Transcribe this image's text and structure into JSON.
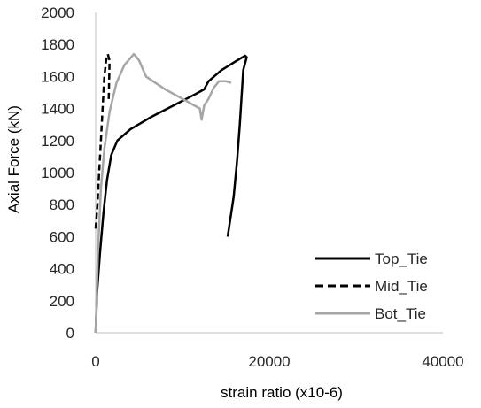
{
  "chart_data": {
    "type": "line",
    "title": "",
    "xlabel": "strain ratio (x10-6)",
    "ylabel": "Axial Force (kN)",
    "xlim": [
      0,
      40000
    ],
    "ylim": [
      0,
      2000
    ],
    "x_ticks": [
      "0",
      "20000",
      "40000"
    ],
    "y_ticks": [
      "0",
      "200",
      "400",
      "600",
      "800",
      "1000",
      "1200",
      "1400",
      "1600",
      "1800",
      "2000"
    ],
    "grid": false,
    "legend_position": "right",
    "series": [
      {
        "name": "Top_Tie",
        "color": "#000000",
        "dash": "solid",
        "points": [
          [
            0,
            0
          ],
          [
            150,
            250
          ],
          [
            500,
            500
          ],
          [
            900,
            750
          ],
          [
            1300,
            950
          ],
          [
            1800,
            1110
          ],
          [
            2500,
            1200
          ],
          [
            4000,
            1270
          ],
          [
            6500,
            1350
          ],
          [
            9000,
            1420
          ],
          [
            11500,
            1490
          ],
          [
            12500,
            1520
          ],
          [
            13000,
            1570
          ],
          [
            14500,
            1640
          ],
          [
            16000,
            1690
          ],
          [
            17200,
            1730
          ],
          [
            17400,
            1720
          ],
          [
            17000,
            1640
          ],
          [
            16600,
            1300
          ],
          [
            16300,
            1080
          ],
          [
            15900,
            850
          ],
          [
            15200,
            600
          ]
        ]
      },
      {
        "name": "Mid_Tie",
        "color": "#000000",
        "dash": "dashed",
        "points": [
          [
            0,
            650
          ],
          [
            200,
            800
          ],
          [
            400,
            1000
          ],
          [
            600,
            1200
          ],
          [
            800,
            1400
          ],
          [
            1000,
            1600
          ],
          [
            1200,
            1700
          ],
          [
            1400,
            1740
          ],
          [
            1600,
            1700
          ],
          [
            1500,
            1450
          ]
        ]
      },
      {
        "name": "Bot_Tie",
        "color": "#a6a6a6",
        "dash": "solid",
        "points": [
          [
            0,
            0
          ],
          [
            250,
            500
          ],
          [
            600,
            900
          ],
          [
            1000,
            1150
          ],
          [
            1600,
            1380
          ],
          [
            2400,
            1560
          ],
          [
            3300,
            1670
          ],
          [
            4400,
            1740
          ],
          [
            5000,
            1700
          ],
          [
            5800,
            1600
          ],
          [
            8000,
            1520
          ],
          [
            10000,
            1460
          ],
          [
            12000,
            1400
          ],
          [
            12200,
            1330
          ],
          [
            12500,
            1420
          ],
          [
            13000,
            1460
          ],
          [
            13600,
            1530
          ],
          [
            14200,
            1570
          ],
          [
            15000,
            1570
          ],
          [
            15600,
            1560
          ]
        ]
      }
    ]
  }
}
